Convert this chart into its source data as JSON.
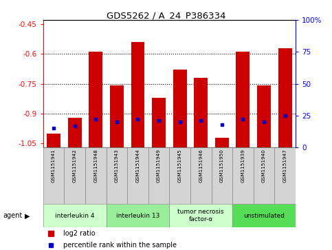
{
  "title": "GDS5262 / A_24_P386334",
  "samples": [
    "GSM1151941",
    "GSM1151942",
    "GSM1151948",
    "GSM1151943",
    "GSM1151944",
    "GSM1151949",
    "GSM1151945",
    "GSM1151946",
    "GSM1151950",
    "GSM1151939",
    "GSM1151940",
    "GSM1151947"
  ],
  "log2_ratio": [
    -1.0,
    -0.92,
    -0.59,
    -0.76,
    -0.54,
    -0.82,
    -0.68,
    -0.72,
    -1.02,
    -0.59,
    -0.76,
    -0.57
  ],
  "percentile_rank": [
    15,
    17,
    22,
    20,
    22,
    21,
    20,
    21,
    18,
    22,
    20,
    25
  ],
  "agents": [
    {
      "label": "interleukin 4",
      "start": 0,
      "end": 3,
      "color": "#ccffcc"
    },
    {
      "label": "interleukin 13",
      "start": 3,
      "end": 6,
      "color": "#99ee99"
    },
    {
      "label": "tumor necrosis\nfactor-α",
      "start": 6,
      "end": 9,
      "color": "#ccffcc"
    },
    {
      "label": "unstimulated",
      "start": 9,
      "end": 12,
      "color": "#55dd55"
    }
  ],
  "ylim": [
    -1.07,
    -0.43
  ],
  "yticks": [
    -1.05,
    -0.9,
    -0.75,
    -0.6,
    -0.45
  ],
  "ytick_labels": [
    "-1.05",
    "-0.9",
    "-0.75",
    "-0.6",
    "-0.45"
  ],
  "right_yticks": [
    0,
    25,
    50,
    75,
    100
  ],
  "right_ytick_labels": [
    "0",
    "25",
    "50",
    "75",
    "100%"
  ],
  "bar_color": "#cc0000",
  "dot_color": "#0000cc",
  "legend_log2_color": "#cc0000",
  "legend_dot_color": "#0000cc"
}
